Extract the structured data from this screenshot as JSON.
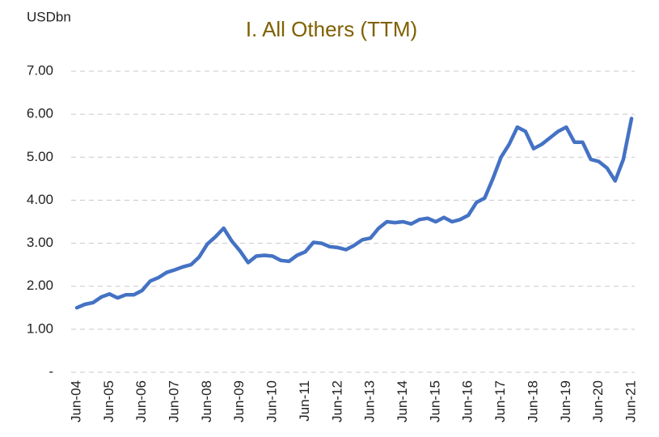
{
  "chart_data": {
    "type": "line",
    "title": "I. All Others (TTM)",
    "y_axis_label": "USDbn",
    "categories": [
      "Jun-04",
      null,
      null,
      null,
      "Jun-05",
      null,
      null,
      null,
      "Jun-06",
      null,
      null,
      null,
      "Jun-07",
      null,
      null,
      null,
      "Jun-08",
      null,
      null,
      null,
      "Jun-09",
      null,
      null,
      null,
      "Jun-10",
      null,
      null,
      null,
      "Jun-11",
      null,
      null,
      null,
      "Jun-12",
      null,
      null,
      null,
      "Jun-13",
      null,
      null,
      null,
      "Jun-14",
      null,
      null,
      null,
      "Jun-15",
      null,
      null,
      null,
      "Jun-16",
      null,
      null,
      null,
      "Jun-17",
      null,
      null,
      null,
      "Jun-18",
      null,
      null,
      null,
      "Jun-19",
      null,
      null,
      null,
      "Jun-20",
      null,
      null,
      null,
      "Jun-21"
    ],
    "series": [
      {
        "name": "All Others",
        "color": "#4472c4",
        "values": [
          1.5,
          1.58,
          1.62,
          1.75,
          1.82,
          1.73,
          1.8,
          1.8,
          1.9,
          2.12,
          2.2,
          2.32,
          2.38,
          2.45,
          2.5,
          2.68,
          2.98,
          3.15,
          3.35,
          3.05,
          2.82,
          2.55,
          2.7,
          2.72,
          2.7,
          2.6,
          2.58,
          2.72,
          2.8,
          3.02,
          3.0,
          2.92,
          2.9,
          2.85,
          2.95,
          3.08,
          3.12,
          3.35,
          3.5,
          3.48,
          3.5,
          3.45,
          3.55,
          3.58,
          3.5,
          3.6,
          3.5,
          3.55,
          3.65,
          3.95,
          4.05,
          4.5,
          5.0,
          5.3,
          5.7,
          5.6,
          5.2,
          5.3,
          5.45,
          5.6,
          5.7,
          5.35,
          5.35,
          4.95,
          4.9,
          4.75,
          4.45,
          4.95,
          5.9
        ]
      }
    ],
    "ylim": [
      0,
      7
    ],
    "yticks": [
      {
        "value": 0,
        "label": "-"
      },
      {
        "value": 1,
        "label": "1.00"
      },
      {
        "value": 2,
        "label": "2.00"
      },
      {
        "value": 3,
        "label": "3.00"
      },
      {
        "value": 4,
        "label": "4.00"
      },
      {
        "value": 5,
        "label": "5.00"
      },
      {
        "value": 6,
        "label": "6.00"
      },
      {
        "value": 7,
        "label": "7.00"
      }
    ],
    "grid": true
  }
}
